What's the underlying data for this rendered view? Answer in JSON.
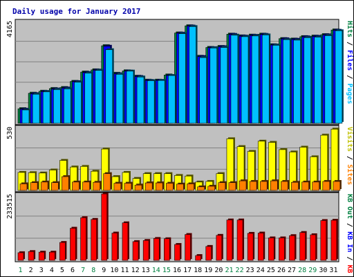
{
  "chart_data": {
    "type": "bar",
    "title": "Daily usage for January 2017",
    "categories": [
      "1",
      "2",
      "3",
      "4",
      "5",
      "6",
      "7",
      "8",
      "9",
      "10",
      "11",
      "12",
      "13",
      "14",
      "15",
      "16",
      "17",
      "18",
      "19",
      "20",
      "21",
      "22",
      "23",
      "24",
      "25",
      "26",
      "27",
      "28",
      "29",
      "30",
      "31"
    ],
    "weekend_days": [
      "1",
      "7",
      "8",
      "14",
      "15",
      "21",
      "22",
      "28",
      "29"
    ],
    "panels": [
      {
        "id": "hits-files-pages",
        "ymax_label": "4165",
        "ymax": 4165,
        "labels": [
          {
            "text": "Pages",
            "color": "#00c0ff"
          },
          {
            "text": " / ",
            "color": "#000000"
          },
          {
            "text": "Files",
            "color": "#0000ff"
          },
          {
            "text": " / ",
            "color": "#000000"
          },
          {
            "text": "Hits",
            "color": "#008040"
          }
        ],
        "series": [
          {
            "name": "Hits",
            "color": "#008040",
            "values": [
              590,
              1220,
              1300,
              1410,
              1450,
              1700,
              2080,
              2170,
              3150,
              2030,
              2130,
              1910,
              1750,
              1750,
              1960,
              3670,
              3960,
              2720,
              3080,
              3120,
              3620,
              3550,
              3580,
              3620,
              3190,
              3440,
              3420,
              3520,
              3540,
              3600,
              3790
            ]
          },
          {
            "name": "Files",
            "color": "#0000ff",
            "values": [
              570,
              1200,
              1290,
              1390,
              1430,
              1690,
              2060,
              2160,
              3130,
              2010,
              2120,
              1900,
              1740,
              1740,
              1940,
              3660,
              3950,
              2710,
              3070,
              3110,
              3610,
              3540,
              3570,
              3610,
              3180,
              3430,
              3410,
              3510,
              3530,
              3590,
              3780
            ]
          },
          {
            "name": "Pages",
            "color": "#00c0ff",
            "values": [
              540,
              1180,
              1280,
              1370,
              1400,
              1670,
              2040,
              2150,
              2990,
              1990,
              2120,
              1880,
              1730,
              1740,
              1940,
              3640,
              3930,
              2670,
              3060,
              3080,
              3580,
              3520,
              3550,
              3590,
              3170,
              3400,
              3380,
              3480,
              3500,
              3560,
              3760
            ]
          }
        ]
      },
      {
        "id": "visits-sites",
        "ymax_label": "530",
        "ymax": 530,
        "labels": [
          {
            "text": "Sites",
            "color": "#ff8000"
          },
          {
            "text": " / ",
            "color": "#000000"
          },
          {
            "text": "Visits",
            "color": "#c0c000"
          }
        ],
        "series": [
          {
            "name": "Visits",
            "color": "#ffff00",
            "values": [
              150,
              148,
              145,
              170,
              250,
              195,
              200,
              160,
              345,
              115,
              150,
              100,
              140,
              140,
              140,
              125,
              120,
              70,
              75,
              140,
              430,
              365,
              325,
              410,
              400,
              340,
              320,
              360,
              280,
              460,
              510
            ]
          },
          {
            "name": "Sites",
            "color": "#ff8000",
            "values": [
              55,
              65,
              70,
              65,
              115,
              70,
              70,
              68,
              140,
              60,
              60,
              45,
              63,
              63,
              60,
              53,
              55,
              30,
              35,
              65,
              65,
              80,
              75,
              75,
              80,
              75,
              68,
              70,
              70,
              75,
              75
            ]
          }
        ]
      },
      {
        "id": "kbytes",
        "ymax_label": "233515",
        "ymax": 233515,
        "labels": [
          {
            "text": "KB F",
            "color": "#ff0000"
          },
          {
            "text": " / ",
            "color": "#000000"
          },
          {
            "text": "KB In",
            "color": "#0000ff"
          },
          {
            "text": " / ",
            "color": "#000000"
          },
          {
            "text": "KB Out",
            "color": "#008040"
          }
        ],
        "series": [
          {
            "name": "KB F",
            "color": "#ff0000",
            "values": [
              27000,
              31000,
              29000,
              29000,
              63000,
              113000,
              150000,
              144000,
              233515,
              96000,
              132000,
              66000,
              70000,
              77000,
              76000,
              56000,
              91000,
              17000,
              49000,
              88000,
              142000,
              142000,
              95000,
              96000,
              79000,
              79000,
              87000,
              98000,
              90000,
              140000,
              141000
            ]
          }
        ]
      }
    ]
  }
}
